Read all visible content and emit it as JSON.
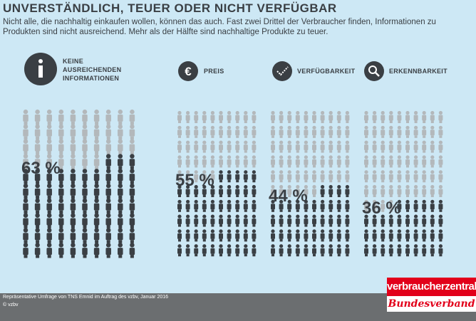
{
  "chart_data": {
    "type": "pictogram",
    "title": "UNVERSTÄNDLICH, TEUER ODER NICHT VERFÜGBAR",
    "subtitle": "Nicht alle, die nachhaltig einkaufen wollen, können das auch. Fast zwei Drittel der Verbraucher finden, Informationen zu Produkten sind nicht ausreichend. Mehr als der Hälfte sind nachhaltige Produkte zu teuer.",
    "categories": [
      "KEINE AUSREICHENDEN INFORMATIONEN",
      "PREIS",
      "VERFÜGBARKEIT",
      "ERKENNBARKEIT"
    ],
    "values": [
      63,
      55,
      44,
      36
    ],
    "value_labels": [
      "63 %",
      "55 %",
      "44 %",
      "36 %"
    ],
    "total": 100,
    "color": "#3a3f44",
    "rest_color": "#b3b8bb",
    "source": "Repräsentative Umfrage von TNS Emnid im Auftrag des vzbv, Januar 2016",
    "copyright": "© vzbv",
    "logo": [
      "verbraucherzentrale",
      "Bundesverband"
    ]
  }
}
